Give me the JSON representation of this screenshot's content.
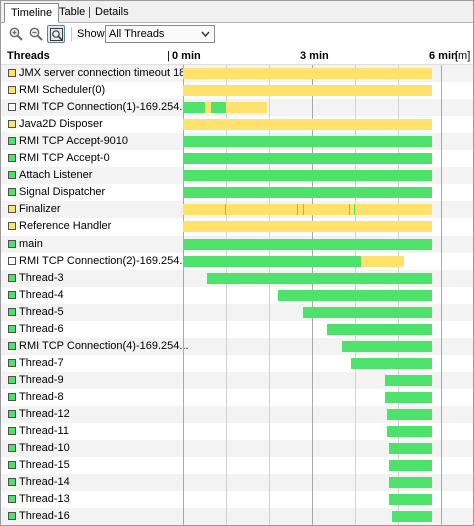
{
  "tabs": [
    {
      "label": "Timeline",
      "active": true
    },
    {
      "label": "Table",
      "active": false
    },
    {
      "label": "Details",
      "active": false
    }
  ],
  "toolbar": {
    "zoom_in_icon": "zoom-in-icon",
    "zoom_out_icon": "zoom-out-icon",
    "fit_icon": "zoom-fit-icon",
    "show_label": "Show:",
    "show_value": "All Threads"
  },
  "header": {
    "threads_label": "Threads",
    "ticks": [
      "0 min",
      "3 min",
      "6 min"
    ],
    "unit_suffix": "[m]"
  },
  "timeline": {
    "max_minutes": 7.35,
    "ticks_minutes": [
      0,
      3,
      6
    ],
    "minor_ticks_minutes": [
      1,
      2,
      4,
      5,
      7
    ]
  },
  "colors": {
    "running": "#4ee16c",
    "waiting": "#ffe26c",
    "stripe": "#f3f3f3",
    "swatch_white": "#ffffff"
  },
  "threads": [
    {
      "name": "JMX server connection timeout 18",
      "swatch": "waiting",
      "segments": [
        {
          "state": "waiting",
          "start": 0,
          "end": 5.8
        }
      ]
    },
    {
      "name": "RMI Scheduler(0)",
      "swatch": "waiting",
      "segments": [
        {
          "state": "waiting",
          "start": 0,
          "end": 5.8
        }
      ]
    },
    {
      "name": "RMI TCP Connection(1)-169.254...",
      "swatch": "white",
      "segments": [
        {
          "state": "running",
          "start": 0,
          "end": 0.5
        },
        {
          "state": "waiting",
          "start": 0.5,
          "end": 0.65
        },
        {
          "state": "running",
          "start": 0.65,
          "end": 1.0
        },
        {
          "state": "waiting",
          "start": 1.0,
          "end": 1.95
        }
      ]
    },
    {
      "name": "Java2D Disposer",
      "swatch": "waiting",
      "segments": [
        {
          "state": "waiting",
          "start": 0,
          "end": 5.8
        }
      ]
    },
    {
      "name": "RMI TCP Accept-9010",
      "swatch": "running",
      "segments": [
        {
          "state": "running",
          "start": 0,
          "end": 5.8
        }
      ]
    },
    {
      "name": "RMI TCP Accept-0",
      "swatch": "running",
      "segments": [
        {
          "state": "running",
          "start": 0,
          "end": 5.8
        }
      ]
    },
    {
      "name": "Attach Listener",
      "swatch": "running",
      "segments": [
        {
          "state": "running",
          "start": 0,
          "end": 5.8
        }
      ]
    },
    {
      "name": "Signal Dispatcher",
      "swatch": "running",
      "segments": [
        {
          "state": "running",
          "start": 0,
          "end": 5.8
        }
      ]
    },
    {
      "name": "Finalizer",
      "swatch": "waiting",
      "segments": [
        {
          "state": "waiting",
          "start": 0,
          "end": 5.8
        },
        {
          "state": "running",
          "start": 0.97,
          "end": 1.0
        },
        {
          "state": "running",
          "start": 2.65,
          "end": 2.68
        },
        {
          "state": "running",
          "start": 2.78,
          "end": 2.81
        },
        {
          "state": "running",
          "start": 3.85,
          "end": 3.88
        },
        {
          "state": "running",
          "start": 3.97,
          "end": 4.0
        }
      ]
    },
    {
      "name": "Reference Handler",
      "swatch": "waiting",
      "segments": [
        {
          "state": "waiting",
          "start": 0,
          "end": 5.8
        }
      ]
    },
    {
      "name": "main",
      "swatch": "running",
      "segments": [
        {
          "state": "running",
          "start": 0,
          "end": 5.8
        }
      ]
    },
    {
      "name": "RMI TCP Connection(2)-169.254...",
      "swatch": "white",
      "segments": [
        {
          "state": "running",
          "start": 0,
          "end": 4.15
        },
        {
          "state": "waiting",
          "start": 4.15,
          "end": 5.15
        }
      ]
    },
    {
      "name": "Thread-3",
      "swatch": "running",
      "segments": [
        {
          "state": "running",
          "start": 0.55,
          "end": 5.8
        }
      ]
    },
    {
      "name": "Thread-4",
      "swatch": "running",
      "segments": [
        {
          "state": "running",
          "start": 2.2,
          "end": 5.8
        }
      ]
    },
    {
      "name": "Thread-5",
      "swatch": "running",
      "segments": [
        {
          "state": "running",
          "start": 2.8,
          "end": 5.8
        }
      ]
    },
    {
      "name": "Thread-6",
      "swatch": "running",
      "segments": [
        {
          "state": "running",
          "start": 3.35,
          "end": 5.8
        }
      ]
    },
    {
      "name": "RMI TCP Connection(4)-169.254...",
      "swatch": "running",
      "segments": [
        {
          "state": "running",
          "start": 3.7,
          "end": 5.8
        }
      ]
    },
    {
      "name": "Thread-7",
      "swatch": "running",
      "segments": [
        {
          "state": "running",
          "start": 3.9,
          "end": 5.8
        }
      ]
    },
    {
      "name": "Thread-9",
      "swatch": "running",
      "segments": [
        {
          "state": "running",
          "start": 4.7,
          "end": 5.8
        }
      ]
    },
    {
      "name": "Thread-8",
      "swatch": "running",
      "segments": [
        {
          "state": "running",
          "start": 4.7,
          "end": 5.8
        }
      ]
    },
    {
      "name": "Thread-12",
      "swatch": "running",
      "segments": [
        {
          "state": "running",
          "start": 4.75,
          "end": 5.8
        }
      ]
    },
    {
      "name": "Thread-11",
      "swatch": "running",
      "segments": [
        {
          "state": "running",
          "start": 4.75,
          "end": 5.8
        }
      ]
    },
    {
      "name": "Thread-10",
      "swatch": "running",
      "segments": [
        {
          "state": "running",
          "start": 4.8,
          "end": 5.8
        }
      ]
    },
    {
      "name": "Thread-15",
      "swatch": "running",
      "segments": [
        {
          "state": "running",
          "start": 4.8,
          "end": 5.8
        }
      ]
    },
    {
      "name": "Thread-14",
      "swatch": "running",
      "segments": [
        {
          "state": "running",
          "start": 4.8,
          "end": 5.8
        }
      ]
    },
    {
      "name": "Thread-13",
      "swatch": "running",
      "segments": [
        {
          "state": "running",
          "start": 4.8,
          "end": 5.8
        }
      ]
    },
    {
      "name": "Thread-16",
      "swatch": "running",
      "segments": [
        {
          "state": "running",
          "start": 4.85,
          "end": 5.8
        }
      ]
    }
  ]
}
